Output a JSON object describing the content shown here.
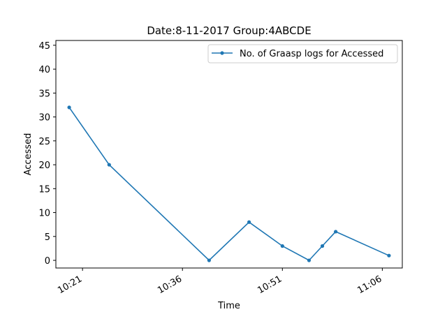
{
  "chart_data": {
    "type": "line",
    "title": "Date:8-11-2017  Group:4ABCDE",
    "xlabel": "Time",
    "ylabel": "Accessed",
    "x_unit": "time",
    "xlim": [
      "10:17",
      "11:09"
    ],
    "ylim": [
      -1.6,
      46
    ],
    "x_ticks": [
      "10:21",
      "10:36",
      "10:51",
      "11:06"
    ],
    "y_ticks": [
      0,
      5,
      10,
      15,
      20,
      25,
      30,
      35,
      40,
      45
    ],
    "grid": false,
    "legend_position": "top-right",
    "series": [
      {
        "name": "No. of Graasp logs for Accessed",
        "color": "#1f77b4",
        "marker": "dot",
        "x": [
          "10:19",
          "10:25",
          "10:40",
          "10:46",
          "10:51",
          "10:55",
          "10:57",
          "10:59",
          "11:07"
        ],
        "y": [
          32,
          20,
          0,
          8,
          3,
          0,
          3,
          6,
          1
        ]
      }
    ]
  }
}
